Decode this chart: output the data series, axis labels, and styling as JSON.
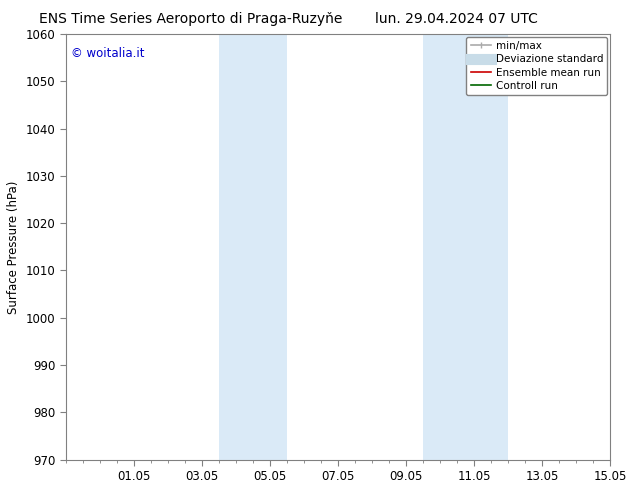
{
  "title_left": "ENS Time Series Aeroporto di Praga-Ruzyňe",
  "title_right": "lun. 29.04.2024 07 UTC",
  "ylabel": "Surface Pressure (hPa)",
  "watermark": "© woitalia.it",
  "watermark_color": "#0000cc",
  "ylim": [
    970,
    1060
  ],
  "yticks": [
    970,
    980,
    990,
    1000,
    1010,
    1020,
    1030,
    1040,
    1050,
    1060
  ],
  "xlim": [
    0,
    16
  ],
  "xtick_labels": [
    "01.05",
    "03.05",
    "05.05",
    "07.05",
    "09.05",
    "11.05",
    "13.05",
    "15.05"
  ],
  "xtick_positions": [
    2,
    4,
    6,
    8,
    10,
    12,
    14,
    16
  ],
  "shaded_bands": [
    {
      "x_start": 4.5,
      "x_end": 6.5,
      "color": "#daeaf7"
    },
    {
      "x_start": 10.5,
      "x_end": 13.0,
      "color": "#daeaf7"
    }
  ],
  "legend_items": [
    {
      "label": "min/max",
      "color": "#aaaaaa",
      "lw": 1.2,
      "style": "solid",
      "type": "line_caps"
    },
    {
      "label": "Deviazione standard",
      "color": "#c8dce8",
      "lw": 8,
      "style": "solid",
      "type": "thick_line"
    },
    {
      "label": "Ensemble mean run",
      "color": "#cc0000",
      "lw": 1.2,
      "style": "solid",
      "type": "line"
    },
    {
      "label": "Controll run",
      "color": "#006600",
      "lw": 1.2,
      "style": "solid",
      "type": "line"
    }
  ],
  "bg_color": "#ffffff",
  "spine_color": "#808080",
  "tick_color": "#808080",
  "title_fontsize": 10,
  "tick_fontsize": 8.5,
  "ylabel_fontsize": 8.5,
  "watermark_fontsize": 8.5,
  "legend_fontsize": 7.5
}
